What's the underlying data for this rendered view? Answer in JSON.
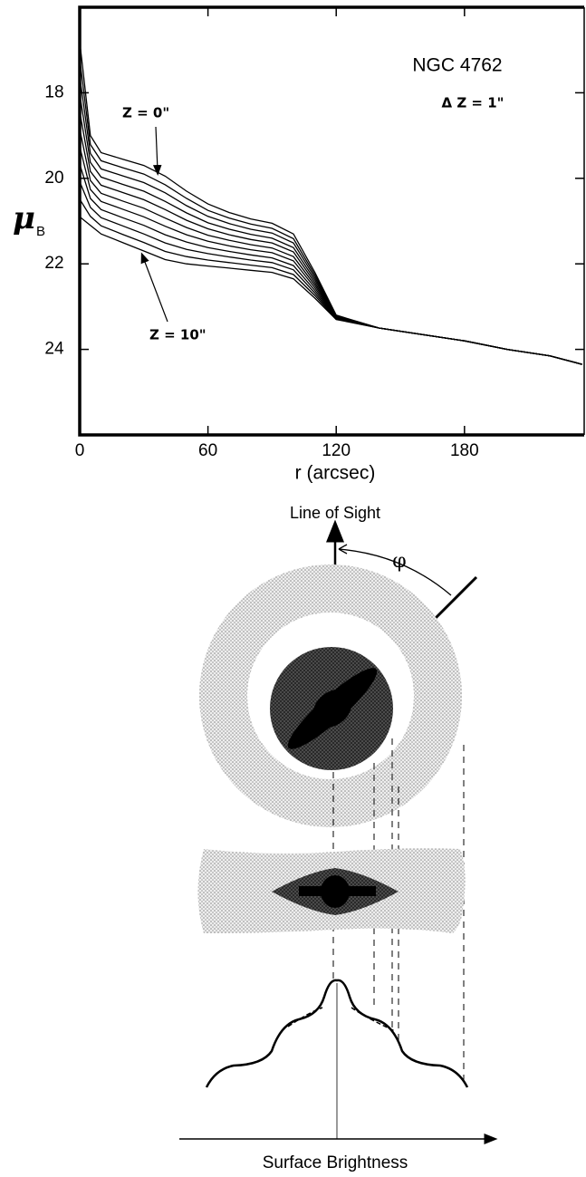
{
  "chart_data": {
    "type": "line",
    "title": "NGC 4762",
    "subtitle": "Δ Z = 1\"",
    "xlabel": "r  (arcsec)",
    "ylabel": "μ",
    "ylabel_subscript": "B",
    "annotations": [
      "Z = 0\"",
      "Z = 10\""
    ],
    "color": "#000000",
    "y_inverted": true,
    "xlim": [
      0,
      236
    ],
    "ylim": [
      16,
      26
    ],
    "xticks": [
      0,
      60,
      120,
      180
    ],
    "yticks": [
      18,
      20,
      22,
      24
    ],
    "x": [
      0,
      5,
      10,
      20,
      30,
      40,
      50,
      60,
      70,
      80,
      90,
      100,
      110,
      120,
      140,
      160,
      180,
      200,
      220,
      235
    ],
    "series": [
      {
        "values": [
          16.8,
          19.0,
          19.4,
          19.55,
          19.7,
          19.95,
          20.3,
          20.6,
          20.8,
          20.95,
          21.05,
          21.3,
          22.2,
          23.2,
          23.5,
          23.65,
          23.8,
          24.0,
          24.15,
          24.35
        ]
      },
      {
        "values": [
          17.21,
          19.21,
          19.59,
          19.75,
          19.9,
          20.15,
          20.47,
          20.75,
          20.93,
          21.07,
          21.17,
          21.41,
          22.26,
          23.21,
          23.5,
          23.65,
          23.8,
          24.0,
          24.15,
          24.35
        ]
      },
      {
        "values": [
          17.62,
          19.42,
          19.78,
          19.94,
          20.1,
          20.34,
          20.64,
          20.89,
          21.06,
          21.19,
          21.28,
          21.51,
          22.32,
          23.22,
          23.5,
          23.65,
          23.8,
          24.0,
          24.15,
          24.35
        ]
      },
      {
        "values": [
          18.03,
          19.63,
          19.97,
          20.14,
          20.3,
          20.54,
          20.81,
          21.04,
          21.19,
          21.31,
          21.4,
          21.62,
          22.38,
          23.23,
          23.5,
          23.65,
          23.8,
          24.0,
          24.15,
          24.35
        ]
      },
      {
        "values": [
          18.44,
          19.84,
          20.16,
          20.33,
          20.5,
          20.73,
          20.98,
          21.18,
          21.32,
          21.43,
          21.51,
          21.72,
          22.44,
          23.24,
          23.5,
          23.65,
          23.8,
          24.0,
          24.15,
          24.35
        ]
      },
      {
        "values": [
          18.85,
          20.05,
          20.35,
          20.53,
          20.7,
          20.93,
          21.15,
          21.33,
          21.45,
          21.55,
          21.63,
          21.83,
          22.5,
          23.25,
          23.5,
          23.65,
          23.8,
          24.0,
          24.15,
          24.35
        ]
      },
      {
        "values": [
          19.26,
          20.26,
          20.54,
          20.72,
          20.9,
          21.12,
          21.32,
          21.47,
          21.58,
          21.67,
          21.74,
          21.93,
          22.56,
          23.26,
          23.5,
          23.65,
          23.8,
          24.0,
          24.15,
          24.35
        ]
      },
      {
        "values": [
          19.67,
          20.47,
          20.73,
          20.92,
          21.1,
          21.32,
          21.49,
          21.62,
          21.71,
          21.79,
          21.86,
          22.04,
          22.62,
          23.27,
          23.5,
          23.65,
          23.8,
          24.0,
          24.15,
          24.35
        ]
      },
      {
        "values": [
          20.08,
          20.68,
          20.92,
          21.11,
          21.3,
          21.51,
          21.66,
          21.76,
          21.84,
          21.91,
          21.97,
          22.14,
          22.68,
          23.28,
          23.5,
          23.65,
          23.8,
          24.0,
          24.15,
          24.35
        ]
      },
      {
        "values": [
          20.49,
          20.89,
          21.11,
          21.31,
          21.5,
          21.71,
          21.83,
          21.91,
          21.97,
          22.03,
          22.09,
          22.25,
          22.74,
          23.29,
          23.5,
          23.65,
          23.8,
          24.0,
          24.15,
          24.35
        ]
      },
      {
        "values": [
          20.9,
          21.1,
          21.3,
          21.5,
          21.7,
          21.9,
          22.0,
          22.05,
          22.1,
          22.15,
          22.2,
          22.35,
          22.8,
          23.3,
          23.5,
          23.65,
          23.8,
          24.0,
          24.15,
          24.35
        ]
      }
    ]
  },
  "diagram": {
    "top_label": "Line of Sight",
    "angle_label": "φ",
    "bottom_label": "Surface Brightness"
  }
}
